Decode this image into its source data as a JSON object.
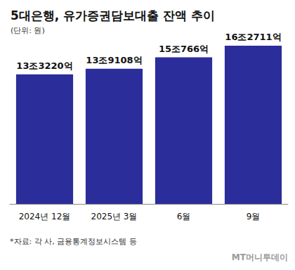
{
  "chart_data": {
    "type": "bar",
    "title": "5대은행, 유가증권담보대출 잔액 추이",
    "subtitle": "(단위: 원)",
    "source": "*자료: 각 사, 금융통계정보시스템 등",
    "annotations": [
      "MT머니투데이"
    ],
    "categories": [
      "2024년 12월",
      "2025년 3월",
      "6월",
      "9월"
    ],
    "values": [
      13322000000000,
      13910800000000,
      15076600000000,
      16271100000000
    ],
    "value_labels": [
      "13조3220억",
      "13조9108억",
      "15조766억",
      "16조2711억"
    ],
    "color": "#2b2d9a",
    "ylim": [
      0,
      17500000000000
    ],
    "grid": false,
    "data_labels": true,
    "tick_labels": "x"
  }
}
